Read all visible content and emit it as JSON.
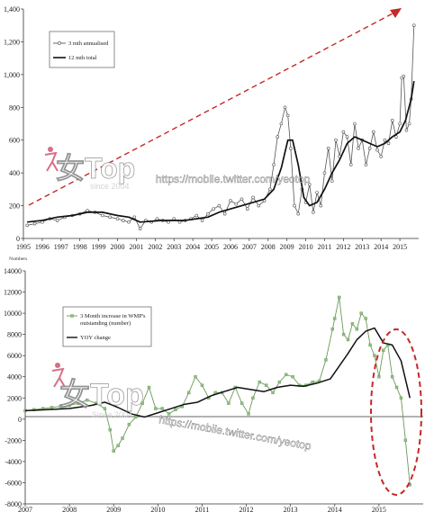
{
  "chart_data": [
    {
      "type": "line",
      "unit_note": "Numbers",
      "ylim": [
        0,
        1400
      ],
      "yticks": [
        "0",
        "200",
        "400",
        "600",
        "800",
        "1,000",
        "1,200",
        "1,400"
      ],
      "xlim": [
        1995,
        2016
      ],
      "xticks": [
        "1995",
        "1996",
        "1997",
        "1998",
        "1999",
        "2000",
        "2001",
        "2002",
        "2003",
        "2004",
        "2005",
        "2006",
        "2007",
        "2008",
        "2009",
        "2010",
        "2011",
        "2012",
        "2013",
        "2014",
        "2015"
      ],
      "legend_position": "top-left",
      "annotation": "dashed red trend arrow",
      "series": [
        {
          "name": "3 mth annualised",
          "style": "line-with-open-circles",
          "x": [
            1995.2,
            1995.6,
            1996.0,
            1996.4,
            1996.8,
            1997.2,
            1997.6,
            1998.0,
            1998.4,
            1998.8,
            1999.2,
            1999.6,
            2000.0,
            2000.3,
            2000.6,
            2000.9,
            2001.2,
            2001.5,
            2001.8,
            2002.1,
            2002.4,
            2002.7,
            2003.0,
            2003.3,
            2003.6,
            2003.9,
            2004.2,
            2004.5,
            2004.8,
            2005.1,
            2005.4,
            2005.7,
            2006.0,
            2006.3,
            2006.6,
            2006.9,
            2007.2,
            2007.5,
            2007.8,
            2008.1,
            2008.3,
            2008.5,
            2008.7,
            2008.9,
            2009.05,
            2009.2,
            2009.4,
            2009.6,
            2009.8,
            2010.0,
            2010.2,
            2010.4,
            2010.6,
            2010.8,
            2011.0,
            2011.2,
            2011.4,
            2011.6,
            2011.8,
            2012.0,
            2012.2,
            2012.4,
            2012.6,
            2012.8,
            2013.0,
            2013.2,
            2013.4,
            2013.6,
            2013.8,
            2014.0,
            2014.2,
            2014.4,
            2014.6,
            2014.8,
            2015.0,
            2015.1,
            2015.2,
            2015.35,
            2015.5,
            2015.6,
            2015.75
          ],
          "y": [
            80,
            90,
            100,
            120,
            110,
            130,
            140,
            150,
            170,
            160,
            140,
            130,
            120,
            110,
            100,
            130,
            60,
            110,
            100,
            120,
            110,
            100,
            120,
            100,
            110,
            120,
            140,
            110,
            150,
            180,
            200,
            150,
            230,
            210,
            240,
            180,
            250,
            200,
            230,
            300,
            450,
            620,
            700,
            800,
            750,
            550,
            200,
            150,
            300,
            220,
            330,
            160,
            280,
            200,
            400,
            550,
            350,
            600,
            500,
            650,
            620,
            450,
            700,
            550,
            600,
            450,
            550,
            650,
            540,
            500,
            600,
            580,
            720,
            620,
            700,
            980,
            990,
            660,
            700,
            850,
            1300
          ]
        },
        {
          "name": "12 mth total",
          "style": "solid-line",
          "x": [
            1995.2,
            1996.0,
            1996.8,
            1997.6,
            1998.4,
            1999.2,
            2000.0,
            2000.6,
            2001.2,
            2001.8,
            2002.4,
            2003.0,
            2003.6,
            2004.2,
            2004.8,
            2005.4,
            2006.0,
            2006.6,
            2007.2,
            2007.8,
            2008.3,
            2008.7,
            2009.05,
            2009.3,
            2009.6,
            2009.9,
            2010.2,
            2010.6,
            2011.0,
            2011.4,
            2011.8,
            2012.2,
            2012.6,
            2013.0,
            2013.4,
            2013.8,
            2014.2,
            2014.6,
            2015.0,
            2015.3,
            2015.6,
            2015.75
          ],
          "y": [
            100,
            110,
            130,
            140,
            160,
            160,
            140,
            130,
            100,
            105,
            110,
            110,
            110,
            120,
            130,
            160,
            180,
            200,
            220,
            240,
            300,
            430,
            600,
            600,
            450,
            250,
            200,
            220,
            300,
            400,
            480,
            580,
            620,
            600,
            580,
            560,
            580,
            620,
            650,
            720,
            850,
            960
          ]
        }
      ]
    },
    {
      "type": "line",
      "ylim": [
        -8000,
        14000
      ],
      "yticks": [
        "-8000",
        "-6000",
        "-4000",
        "-2000",
        "0",
        "2000",
        "4000",
        "6000",
        "8000",
        "10000",
        "12000",
        "14000"
      ],
      "xlim": [
        2007,
        2016
      ],
      "xticks": [
        "2007",
        "2008",
        "2009",
        "2010",
        "2011",
        "2012",
        "2013",
        "2014",
        "2015"
      ],
      "legend_position": "upper-left",
      "annotation": "dashed red ellipse around 2015",
      "series": [
        {
          "name": "3 Month increase in WMP's outstanding (number)",
          "style": "green-line-with-markers",
          "x": [
            2007.0,
            2007.2,
            2007.4,
            2007.6,
            2007.8,
            2008.0,
            2008.2,
            2008.4,
            2008.6,
            2008.8,
            2008.92,
            2009.0,
            2009.1,
            2009.2,
            2009.35,
            2009.5,
            2009.65,
            2009.8,
            2009.95,
            2010.1,
            2010.25,
            2010.4,
            2010.55,
            2010.7,
            2010.85,
            2011.0,
            2011.15,
            2011.3,
            2011.45,
            2011.6,
            2011.75,
            2011.9,
            2012.05,
            2012.15,
            2012.3,
            2012.45,
            2012.6,
            2012.75,
            2012.9,
            2013.05,
            2013.2,
            2013.35,
            2013.5,
            2013.65,
            2013.8,
            2013.95,
            2014.0,
            2014.1,
            2014.2,
            2014.3,
            2014.4,
            2014.5,
            2014.6,
            2014.7,
            2014.8,
            2014.9,
            2015.0,
            2015.1,
            2015.2,
            2015.3,
            2015.4,
            2015.5,
            2015.6,
            2015.7
          ],
          "y": [
            800,
            900,
            1000,
            1100,
            1200,
            1300,
            1500,
            1800,
            1500,
            1000,
            -1000,
            -3000,
            -2500,
            -1800,
            -500,
            200,
            1500,
            3000,
            1000,
            1000,
            500,
            900,
            1200,
            2500,
            4000,
            3200,
            2000,
            2500,
            2500,
            1500,
            3000,
            1500,
            500,
            2000,
            3500,
            3200,
            2500,
            3500,
            4200,
            4000,
            3200,
            3200,
            3500,
            3600,
            5600,
            8500,
            9500,
            11500,
            8000,
            7500,
            9000,
            8500,
            10000,
            9500,
            7000,
            6000,
            4000,
            6500,
            7000,
            4000,
            3000,
            2000,
            -2000,
            -6200
          ]
        },
        {
          "name": "YOY change",
          "style": "solid-line",
          "x": [
            2007.0,
            2007.5,
            2008.0,
            2008.5,
            2008.8,
            2009.1,
            2009.4,
            2009.7,
            2010.0,
            2010.3,
            2010.6,
            2010.9,
            2011.2,
            2011.5,
            2011.8,
            2012.1,
            2012.4,
            2012.7,
            2013.0,
            2013.3,
            2013.6,
            2013.9,
            2014.1,
            2014.3,
            2014.5,
            2014.7,
            2014.9,
            2015.1,
            2015.3,
            2015.5,
            2015.7
          ],
          "y": [
            800,
            900,
            1000,
            1300,
            1600,
            1100,
            500,
            200,
            600,
            1000,
            1400,
            1600,
            2200,
            2600,
            3000,
            2800,
            2600,
            3000,
            3200,
            3100,
            3400,
            3800,
            5000,
            6200,
            7500,
            8300,
            8600,
            7200,
            7000,
            5500,
            2000
          ]
        }
      ]
    }
  ],
  "watermarks": [
    {
      "logo": "女Top",
      "since": "since 2004",
      "url": "https://mobile.twitter.com/yeotop"
    },
    {
      "logo": "女Top",
      "since": "Since 2004",
      "url": "https://mobile.twitter.com/yeotop"
    }
  ],
  "colors": {
    "arrow": "#c62828",
    "ellipse": "#c62828",
    "green": "#6a9a5a",
    "black": "#111111",
    "logo_pink": "#d2607a"
  }
}
